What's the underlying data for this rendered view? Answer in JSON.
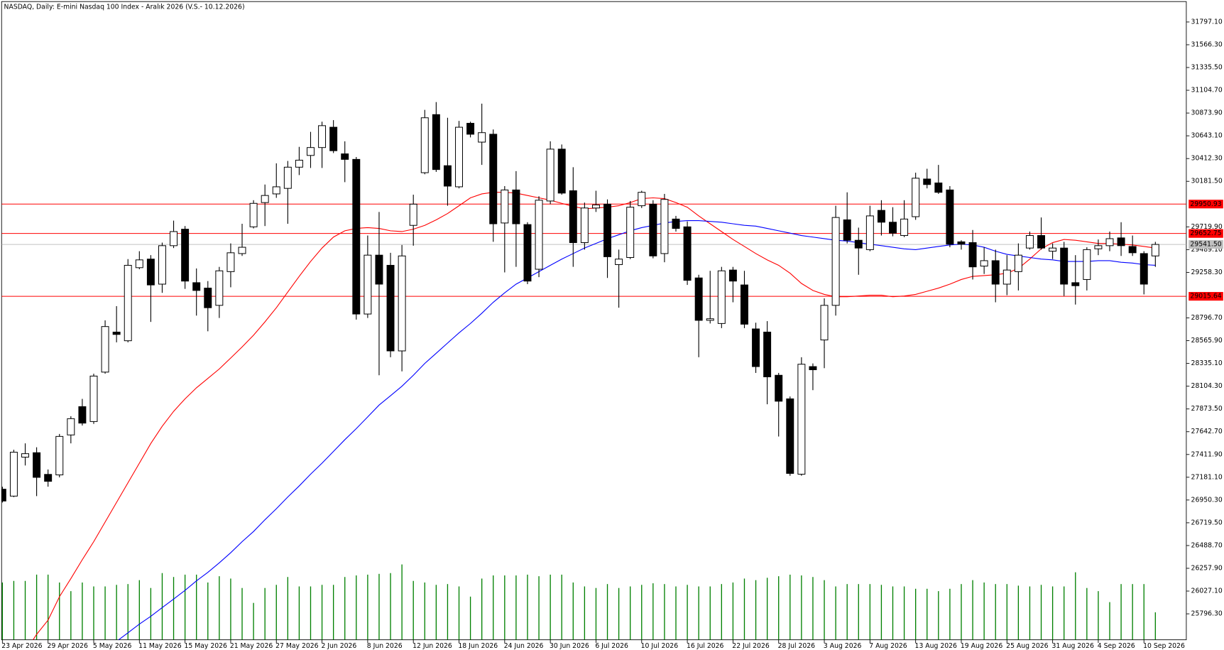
{
  "chart_data": {
    "type": "candlestick",
    "title": "NASDAQ, Daily:  E-mini Nasdaq 100 Index - Aralık 2026 (V.S.- 10.12.2026)",
    "categories": [
      "23 Apr 2026",
      null,
      null,
      null,
      "29 Apr 2026",
      null,
      null,
      null,
      "5 May 2026",
      null,
      null,
      null,
      "11 May 2026",
      null,
      null,
      null,
      "15 May 2026",
      null,
      null,
      null,
      "21 May 2026",
      null,
      null,
      null,
      "27 May 2026",
      null,
      null,
      null,
      "2 Jun 2026",
      null,
      null,
      null,
      "8 Jun 2026",
      null,
      null,
      null,
      "12 Jun 2026",
      null,
      null,
      null,
      "18 Jun 2026",
      null,
      null,
      null,
      "24 Jun 2026",
      null,
      null,
      null,
      "30 Jun 2026",
      null,
      null,
      null,
      "6 Jul 2026",
      null,
      null,
      null,
      "10 Jul 2026",
      null,
      null,
      null,
      "16 Jul 2026",
      null,
      null,
      null,
      "22 Jul 2026",
      null,
      null,
      null,
      "28 Jul 2026",
      null,
      null,
      null,
      "3 Aug 2026",
      null,
      null,
      null,
      "7 Aug 2026",
      null,
      null,
      null,
      "13 Aug 2026",
      null,
      null,
      null,
      "19 Aug 2026",
      null,
      null,
      null,
      "25 Aug 2026",
      null,
      null,
      null,
      "31 Aug 2026",
      null,
      null,
      null,
      "4 Sep 2026",
      null,
      null,
      null,
      "10 Sep 2026",
      null
    ],
    "open": [
      27060,
      26990,
      27385,
      27430,
      27210,
      27205,
      27610,
      27897,
      27746,
      28247,
      28653,
      28565,
      29306,
      29393,
      29139,
      29529,
      29696,
      29154,
      29099,
      28924,
      29266,
      29449,
      29720,
      29966,
      30054,
      30110,
      30325,
      30444,
      30524,
      30730,
      30460,
      30404,
      28836,
      29433,
      29330,
      28462,
      29735,
      30269,
      30858,
      30340,
      30126,
      30770,
      30579,
      30659,
      29759,
      30094,
      29743,
      29290,
      29982,
      30508,
      30086,
      29560,
      29911,
      29950,
      29337,
      29409,
      29934,
      29950,
      29449,
      29799,
      29720,
      29202,
      28772,
      28740,
      29282,
      29131,
      28685,
      28653,
      28215,
      27976,
      27212,
      28303,
      28573,
      28924,
      29791,
      29584,
      29489,
      29887,
      29767,
      29632,
      29823,
      30205,
      30165,
      30094,
      29568,
      29560,
      29322,
      29377,
      29139,
      29266,
      29505,
      29632,
      29473,
      29505,
      29154,
      29186,
      29497,
      29529,
      29608,
      29521,
      29449,
      29425
    ],
    "high": [
      27085,
      27460,
      27525,
      27485,
      27260,
      27620,
      27800,
      27976,
      28231,
      28772,
      28916,
      29393,
      29473,
      29433,
      29560,
      29783,
      29728,
      29298,
      29170,
      29314,
      29552,
      29751,
      29990,
      30149,
      30364,
      30388,
      30531,
      30683,
      30786,
      30802,
      30587,
      30428,
      29632,
      29871,
      29457,
      29536,
      30046,
      30906,
      30985,
      30826,
      30794,
      30786,
      30969,
      30707,
      30133,
      30285,
      29767,
      30030,
      30587,
      30555,
      30325,
      29966,
      30086,
      29998,
      29489,
      29982,
      30086,
      29990,
      30054,
      29831,
      29775,
      29234,
      29274,
      29314,
      29314,
      29274,
      28748,
      28764,
      28239,
      28000,
      28398,
      28335,
      28995,
      29934,
      30070,
      29712,
      29934,
      29990,
      29919,
      29990,
      30269,
      30309,
      30348,
      30133,
      29584,
      29688,
      29513,
      29489,
      29433,
      29552,
      29672,
      29815,
      29552,
      29568,
      29433,
      29513,
      29592,
      29672,
      29767,
      29632,
      29473,
      29568
    ],
    "low": [
      26925,
      26980,
      27300,
      26990,
      27085,
      27180,
      27525,
      27706,
      27722,
      28231,
      28549,
      28549,
      29290,
      28756,
      29051,
      29505,
      29091,
      28820,
      28661,
      28796,
      29107,
      29425,
      29704,
      29728,
      30014,
      29751,
      30245,
      30317,
      30317,
      30468,
      30173,
      28780,
      28796,
      28215,
      28398,
      28255,
      29529,
      30253,
      30277,
      29934,
      30110,
      30627,
      30348,
      29568,
      29258,
      29314,
      29139,
      29210,
      29950,
      30046,
      29314,
      29489,
      29871,
      29202,
      28900,
      29393,
      29911,
      29401,
      29361,
      29672,
      29131,
      28398,
      28740,
      28693,
      28955,
      28693,
      28239,
      27921,
      27594,
      27196,
      27196,
      28064,
      28287,
      28820,
      29552,
      29234,
      29473,
      29632,
      29624,
      29616,
      29791,
      30110,
      30054,
      29513,
      29489,
      29186,
      29242,
      28955,
      29027,
      29075,
      29489,
      29489,
      29393,
      29019,
      28932,
      29075,
      29433,
      29473,
      29425,
      29425,
      29035,
      29314
    ],
    "close": [
      26940,
      27435,
      27420,
      27180,
      27140,
      27595,
      27775,
      27730,
      28207,
      28709,
      28629,
      29330,
      29385,
      29131,
      29529,
      29672,
      29170,
      29075,
      28900,
      29274,
      29457,
      29513,
      29958,
      30038,
      30126,
      30325,
      30396,
      30524,
      30746,
      30492,
      30404,
      28836,
      29433,
      29139,
      28462,
      29425,
      29950,
      30826,
      30301,
      30133,
      30730,
      30659,
      30675,
      29751,
      30094,
      29751,
      29170,
      29990,
      30508,
      30062,
      29560,
      29911,
      29942,
      29417,
      29393,
      29919,
      30070,
      29425,
      29998,
      29704,
      29178,
      28772,
      28788,
      29274,
      29170,
      28733,
      28303,
      28199,
      27952,
      27220,
      28327,
      28271,
      28924,
      29815,
      29584,
      29505,
      29831,
      29767,
      29656,
      29799,
      30213,
      30149,
      30070,
      29544,
      29544,
      29314,
      29377,
      29139,
      29282,
      29433,
      29632,
      29505,
      29505,
      29139,
      29123,
      29489,
      29529,
      29600,
      29529,
      29457,
      29139,
      29541.5
    ],
    "lines": [
      {
        "color": "#ff0000",
        "values": [
          null,
          null,
          25413,
          25588,
          25732,
          25970,
          26154,
          26345,
          26528,
          26727,
          26926,
          27125,
          27324,
          27523,
          27698,
          27849,
          27976,
          28088,
          28183,
          28279,
          28390,
          28502,
          28621,
          28756,
          28900,
          29059,
          29218,
          29369,
          29505,
          29616,
          29680,
          29704,
          29712,
          29704,
          29680,
          29672,
          29696,
          29735,
          29791,
          29855,
          29934,
          30014,
          30054,
          30070,
          30070,
          30062,
          30038,
          30014,
          29990,
          29958,
          29927,
          29903,
          29911,
          29919,
          29934,
          29966,
          30006,
          30014,
          30006,
          29966,
          29919,
          29831,
          29751,
          29672,
          29592,
          29521,
          29449,
          29385,
          29330,
          29250,
          29146,
          29075,
          29035,
          29011,
          29011,
          29019,
          29027,
          29027,
          29011,
          29019,
          29035,
          29067,
          29099,
          29139,
          29186,
          29218,
          29226,
          29234,
          29250,
          29298,
          29393,
          29497,
          29560,
          29592,
          29584,
          29568,
          29552,
          29552,
          29544,
          29536,
          29521,
          29505
        ]
      },
      {
        "color": "#0000ff",
        "values": [
          null,
          null,
          null,
          null,
          null,
          null,
          null,
          null,
          null,
          null,
          25517,
          25604,
          25692,
          25771,
          25859,
          25946,
          26034,
          26130,
          26217,
          26313,
          26416,
          26528,
          26631,
          26750,
          26862,
          26981,
          27093,
          27212,
          27324,
          27443,
          27562,
          27674,
          27793,
          27913,
          28008,
          28104,
          28215,
          28335,
          28438,
          28542,
          28645,
          28740,
          28844,
          28955,
          29051,
          29139,
          29202,
          29266,
          29330,
          29393,
          29449,
          29505,
          29552,
          29600,
          29640,
          29680,
          29712,
          29735,
          29759,
          29775,
          29783,
          29783,
          29775,
          29767,
          29751,
          29735,
          29727,
          29704,
          29680,
          29656,
          29632,
          29616,
          29600,
          29584,
          29576,
          29560,
          29544,
          29529,
          29513,
          29497,
          29489,
          29505,
          29521,
          29536,
          29544,
          29536,
          29513,
          29473,
          29441,
          29425,
          29409,
          29393,
          29385,
          29369,
          29369,
          29369,
          29377,
          29377,
          29361,
          29353,
          29337,
          29330
        ]
      }
    ],
    "volume": {
      "color": "#008000",
      "values": [
        73,
        75,
        75,
        83,
        83,
        73,
        62,
        73,
        68,
        68,
        70,
        71,
        76,
        66,
        85,
        80,
        83,
        83,
        73,
        81,
        78,
        66,
        47,
        66,
        70,
        80,
        68,
        68,
        70,
        70,
        80,
        82,
        83,
        84,
        85,
        96,
        75,
        73,
        70,
        71,
        68,
        55,
        78,
        82,
        82,
        82,
        83,
        81,
        83,
        83,
        73,
        68,
        66,
        71,
        66,
        68,
        70,
        72,
        71,
        68,
        70,
        68,
        68,
        71,
        73,
        78,
        76,
        79,
        81,
        83,
        82,
        80,
        76,
        68,
        71,
        71,
        71,
        70,
        68,
        68,
        65,
        65,
        62,
        65,
        71,
        76,
        73,
        71,
        71,
        69,
        68,
        70,
        68,
        68,
        86,
        66,
        62,
        48,
        71,
        71,
        71,
        35
      ]
    },
    "levels": [
      {
        "value": 29950.93,
        "label": "29950.93",
        "color": "#ff0000"
      },
      {
        "value": 29652.75,
        "label": "29652.75",
        "color": "#ff0000"
      },
      {
        "value": 29015.64,
        "label": "29015.64",
        "color": "#ff0000"
      }
    ],
    "last_price": {
      "value": 29541.5,
      "label": "29541.50",
      "color": "#c0c0c0"
    },
    "ylim": [
      25533,
      32004
    ],
    "yticks": [
      {
        "value": 31797.1,
        "label": "31797.10"
      },
      {
        "value": 31566.3,
        "label": "31566.30"
      },
      {
        "value": 31335.5,
        "label": "31335.50"
      },
      {
        "value": 31104.7,
        "label": "31104.70"
      },
      {
        "value": 30873.9,
        "label": "30873.90"
      },
      {
        "value": 30643.1,
        "label": "30643.10"
      },
      {
        "value": 30412.3,
        "label": "30412.30"
      },
      {
        "value": 30181.5,
        "label": "30181.50"
      },
      {
        "value": 29719.9,
        "label": "29719.90"
      },
      {
        "value": 29489.1,
        "label": "29489.10"
      },
      {
        "value": 29258.3,
        "label": "29258.30"
      },
      {
        "value": 28796.7,
        "label": "28796.70"
      },
      {
        "value": 28565.9,
        "label": "28565.90"
      },
      {
        "value": 28335.1,
        "label": "28335.10"
      },
      {
        "value": 28104.3,
        "label": "28104.30"
      },
      {
        "value": 27873.5,
        "label": "27873.50"
      },
      {
        "value": 27642.7,
        "label": "27642.70"
      },
      {
        "value": 27411.9,
        "label": "27411.90"
      },
      {
        "value": 27181.1,
        "label": "27181.10"
      },
      {
        "value": 26950.3,
        "label": "26950.30"
      },
      {
        "value": 26719.5,
        "label": "26719.50"
      },
      {
        "value": 26488.7,
        "label": "26488.70"
      },
      {
        "value": 26257.9,
        "label": "26257.90"
      },
      {
        "value": 26027.1,
        "label": "26027.10"
      },
      {
        "value": 25796.3,
        "label": "25796.30"
      }
    ]
  }
}
